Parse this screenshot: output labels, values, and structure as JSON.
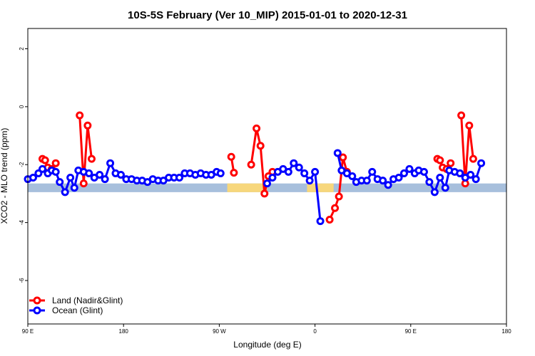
{
  "chart_data": {
    "type": "line",
    "title": "10S-5S February (Ver 10_MIP)   2015-01-01 to 2020-12-31",
    "xlabel": "Longitude (deg E)",
    "ylabel": "XCO2 - MLO trend (ppm)",
    "xlim": [
      90,
      450
    ],
    "ylim": [
      -7.5,
      2.7
    ],
    "x_ticks": [
      {
        "value": 90,
        "label": "90 E"
      },
      {
        "value": 162,
        "label": "180"
      },
      {
        "value": 234,
        "label": "90 W"
      },
      {
        "value": 306,
        "label": "0"
      },
      {
        "value": 378,
        "label": "90 E"
      },
      {
        "value": 450,
        "label": "180"
      }
    ],
    "y_ticks": [
      {
        "value": 2,
        "label": "2"
      },
      {
        "value": 0,
        "label": "0"
      },
      {
        "value": -2,
        "label": "-2"
      },
      {
        "value": -4,
        "label": "-4"
      },
      {
        "value": -6,
        "label": "-6"
      }
    ],
    "legend_position": "bottom-left",
    "map_strip": {
      "y_range": [
        -2.95,
        -2.65
      ],
      "ocean_color": "#a7bfdc",
      "land_color": "#f7d77c",
      "land_ranges": [
        [
          240,
          270
        ],
        [
          300,
          320
        ]
      ]
    },
    "series": [
      {
        "name": "Land (Nadir&Glint)",
        "color": "#ff0000",
        "segments": [
          [
            [
              101,
              -1.8
            ],
            [
              103,
              -1.85
            ],
            [
              105,
              -2.1
            ],
            [
              108,
              -2.15
            ],
            [
              111,
              -1.95
            ]
          ],
          [
            [
              129,
              -0.3
            ],
            [
              132,
              -2.65
            ],
            [
              135,
              -0.65
            ],
            [
              138,
              -1.8
            ]
          ],
          [
            [
              243,
              -1.73
            ],
            [
              245,
              -2.28
            ]
          ],
          [
            [
              258,
              -2.0
            ],
            [
              262,
              -0.75
            ],
            [
              265,
              -1.35
            ],
            [
              268,
              -3.0
            ],
            [
              271,
              -2.4
            ],
            [
              274,
              -2.25
            ]
          ],
          [
            [
              317,
              -3.9
            ],
            [
              321,
              -3.5
            ],
            [
              324,
              -3.1
            ],
            [
              327,
              -1.75
            ],
            [
              330,
              -2.25
            ]
          ],
          [
            [
              398,
              -1.8
            ],
            [
              400,
              -1.85
            ],
            [
              402,
              -2.1
            ],
            [
              405,
              -2.15
            ],
            [
              408,
              -1.95
            ]
          ],
          [
            [
              416,
              -0.3
            ],
            [
              419,
              -2.65
            ],
            [
              422,
              -0.65
            ],
            [
              425,
              -1.8
            ]
          ]
        ]
      },
      {
        "name": "Ocean (Glint)",
        "color": "#0000ff",
        "points": [
          [
            90,
            -2.5
          ],
          [
            94,
            -2.45
          ],
          [
            98,
            -2.3
          ],
          [
            101,
            -2.15
          ],
          [
            105,
            -2.3
          ],
          [
            108,
            -2.2
          ],
          [
            111,
            -2.25
          ],
          [
            114,
            -2.6
          ],
          [
            118,
            -2.95
          ],
          [
            122,
            -2.45
          ],
          [
            125,
            -2.8
          ],
          [
            128,
            -2.2
          ],
          [
            132,
            -2.25
          ],
          [
            136,
            -2.3
          ],
          [
            140,
            -2.45
          ],
          [
            144,
            -2.35
          ],
          [
            148,
            -2.5
          ],
          [
            152,
            -1.95
          ],
          [
            156,
            -2.3
          ],
          [
            160,
            -2.35
          ],
          [
            164,
            -2.5
          ],
          [
            168,
            -2.5
          ],
          [
            172,
            -2.55
          ],
          [
            176,
            -2.55
          ],
          [
            180,
            -2.6
          ],
          [
            184,
            -2.5
          ],
          [
            188,
            -2.55
          ],
          [
            192,
            -2.55
          ],
          [
            196,
            -2.45
          ],
          [
            200,
            -2.45
          ],
          [
            204,
            -2.45
          ],
          [
            208,
            -2.3
          ],
          [
            212,
            -2.3
          ],
          [
            216,
            -2.35
          ],
          [
            220,
            -2.3
          ],
          [
            224,
            -2.35
          ],
          [
            228,
            -2.35
          ],
          [
            232,
            -2.25
          ],
          [
            235,
            -2.3
          ],
          null,
          [
            270,
            -2.65
          ],
          [
            274,
            -2.45
          ],
          [
            278,
            -2.25
          ],
          [
            282,
            -2.15
          ],
          [
            286,
            -2.25
          ],
          [
            290,
            -1.95
          ],
          [
            294,
            -2.1
          ],
          [
            298,
            -2.3
          ],
          [
            302,
            -2.55
          ],
          [
            306,
            -2.25
          ],
          [
            310,
            -3.95
          ],
          null,
          [
            323,
            -1.6
          ],
          [
            326,
            -2.2
          ],
          [
            330,
            -2.3
          ],
          [
            334,
            -2.4
          ],
          [
            337,
            -2.6
          ],
          [
            341,
            -2.55
          ],
          [
            345,
            -2.55
          ],
          [
            349,
            -2.25
          ],
          [
            353,
            -2.5
          ],
          [
            357,
            -2.55
          ],
          [
            361,
            -2.7
          ],
          [
            365,
            -2.5
          ],
          [
            369,
            -2.45
          ],
          [
            373,
            -2.3
          ],
          [
            377,
            -2.15
          ],
          [
            381,
            -2.3
          ],
          [
            384,
            -2.2
          ],
          [
            388,
            -2.25
          ],
          [
            392,
            -2.6
          ],
          [
            396,
            -2.95
          ],
          [
            400,
            -2.45
          ],
          [
            404,
            -2.8
          ],
          [
            407,
            -2.2
          ],
          [
            411,
            -2.25
          ],
          [
            415,
            -2.3
          ],
          [
            419,
            -2.45
          ],
          [
            423,
            -2.35
          ],
          [
            427,
            -2.5
          ],
          [
            431,
            -1.95
          ]
        ]
      }
    ]
  }
}
